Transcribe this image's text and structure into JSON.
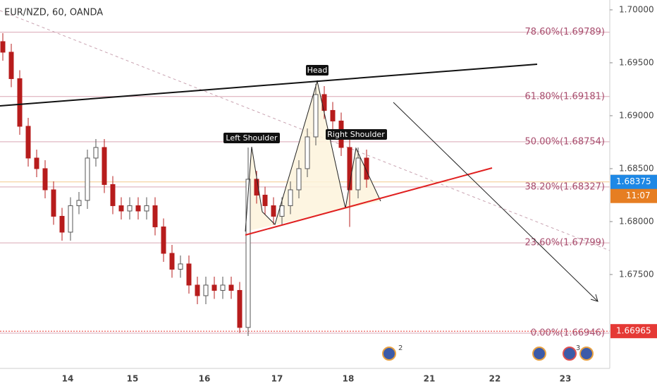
{
  "chart_data": {
    "type": "candlestick",
    "title": "EUR/NZD, 60, OANDA",
    "ylim": [
      1.66613,
      1.70093
    ],
    "yticks": [
      {
        "value": 1.7,
        "label": "1.70000"
      },
      {
        "value": 1.695,
        "label": "1.69500"
      },
      {
        "value": 1.69,
        "label": "1.69000"
      },
      {
        "value": 1.685,
        "label": "1.68500"
      },
      {
        "value": 1.68,
        "label": "1.68000"
      },
      {
        "value": 1.675,
        "label": "1.67500"
      }
    ],
    "x_labels": [
      "14",
      "15",
      "16",
      "17",
      "18",
      "21",
      "22",
      "23"
    ],
    "up_color": "#ffffff",
    "down_color": "#b71c1c",
    "candles": {
      "open": [
        1.697,
        1.696,
        1.6935,
        1.689,
        1.686,
        1.685,
        1.683,
        1.6805,
        1.679,
        1.6815,
        1.682,
        1.686,
        1.687,
        1.6835,
        1.6815,
        1.681,
        1.6815,
        1.681,
        1.6815,
        1.6795,
        1.677,
        1.6755,
        1.676,
        1.674,
        1.673,
        1.674,
        1.6735,
        1.674,
        1.6735,
        1.67,
        1.684,
        1.6825,
        1.6815,
        1.6805,
        1.6815,
        1.683,
        1.685,
        1.688,
        1.692,
        1.6905,
        1.6895,
        1.687,
        1.683,
        1.686
      ],
      "high": [
        1.6978,
        1.6968,
        1.6943,
        1.6898,
        1.6868,
        1.6858,
        1.6838,
        1.6813,
        1.6823,
        1.6828,
        1.6868,
        1.6878,
        1.6878,
        1.6843,
        1.6823,
        1.6823,
        1.6823,
        1.6823,
        1.6823,
        1.6803,
        1.6778,
        1.6768,
        1.6768,
        1.6748,
        1.6748,
        1.6748,
        1.6748,
        1.6748,
        1.6743,
        1.687,
        1.6848,
        1.6833,
        1.6823,
        1.6823,
        1.6838,
        1.6858,
        1.6888,
        1.693,
        1.6928,
        1.6913,
        1.6903,
        1.6878,
        1.687,
        1.6868
      ],
      "low": [
        1.6952,
        1.6927,
        1.6882,
        1.6852,
        1.6842,
        1.6822,
        1.6797,
        1.6782,
        1.6782,
        1.6807,
        1.6812,
        1.6852,
        1.6827,
        1.6807,
        1.6802,
        1.6802,
        1.6802,
        1.6802,
        1.6787,
        1.6762,
        1.6747,
        1.6747,
        1.6732,
        1.6722,
        1.6722,
        1.6727,
        1.6727,
        1.6727,
        1.6695,
        1.6692,
        1.6817,
        1.6807,
        1.6797,
        1.6797,
        1.6807,
        1.6822,
        1.6842,
        1.6872,
        1.6897,
        1.6887,
        1.6862,
        1.6795,
        1.6822,
        1.6832
      ],
      "close": [
        1.696,
        1.6935,
        1.689,
        1.686,
        1.685,
        1.683,
        1.6805,
        1.679,
        1.6815,
        1.682,
        1.686,
        1.687,
        1.6835,
        1.6815,
        1.681,
        1.6815,
        1.681,
        1.6815,
        1.6795,
        1.677,
        1.6755,
        1.676,
        1.674,
        1.673,
        1.674,
        1.6735,
        1.674,
        1.6735,
        1.67,
        1.684,
        1.6825,
        1.6815,
        1.6805,
        1.6815,
        1.683,
        1.685,
        1.688,
        1.692,
        1.6905,
        1.6895,
        1.687,
        1.683,
        1.686,
        1.684
      ]
    },
    "fib_levels": [
      {
        "value": 1.69789,
        "label": "78.60%(1.69789)"
      },
      {
        "value": 1.69181,
        "label": "61.80%(1.69181)"
      },
      {
        "value": 1.68754,
        "label": "50.00%(1.68754)"
      },
      {
        "value": 1.68327,
        "label": "38.20%(1.68327)"
      },
      {
        "value": 1.67799,
        "label": "23.60%(1.67799)"
      },
      {
        "value": 1.66946,
        "label": "0.00%(1.66946)"
      }
    ],
    "fib_color": "#a84d6e",
    "last_price": 1.68375,
    "last_time": "11:07",
    "low_marker": 1.66965,
    "annotations": [
      "Head",
      "Left Shoulder",
      "Right Shoulder"
    ],
    "events": [
      "2",
      "3"
    ]
  }
}
